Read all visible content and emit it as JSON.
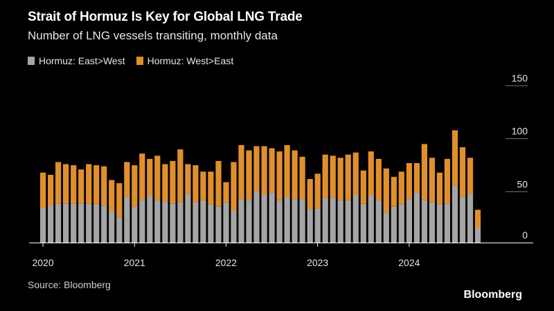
{
  "colors": {
    "background": "#000000",
    "east_west": "#a5a5a5",
    "west_east": "#e08f2e",
    "axis": "#ffffff",
    "grid": "#555555"
  },
  "header": {
    "title": "Strait of Hormuz Is Key for Global LNG Trade",
    "subtitle": "Number of LNG vessels transiting, monthly data"
  },
  "legend": [
    {
      "label": "Hormuz: East>West",
      "color": "#a5a5a5"
    },
    {
      "label": "Hormuz: West>East",
      "color": "#e08f2e"
    }
  ],
  "footer": {
    "source": "Source: Bloomberg",
    "brand": "Bloomberg"
  },
  "chart_data": {
    "type": "bar",
    "stacked": true,
    "title": "Strait of Hormuz Is Key for Global LNG Trade",
    "subtitle": "Number of LNG vessels transiting, monthly data",
    "xlabel": "",
    "ylabel": "",
    "ylim": [
      0,
      150
    ],
    "y_ticks": [
      0,
      50,
      100,
      150
    ],
    "y_axis_side": "right",
    "grid": false,
    "legend_position": "top-left",
    "x_tick_labels": [
      "2020",
      "2021",
      "2022",
      "2023",
      "2024"
    ],
    "x_tick_indices": [
      0,
      12,
      24,
      36,
      48
    ],
    "categories": [
      "2020-01",
      "2020-02",
      "2020-03",
      "2020-04",
      "2020-05",
      "2020-06",
      "2020-07",
      "2020-08",
      "2020-09",
      "2020-10",
      "2020-11",
      "2020-12",
      "2021-01",
      "2021-02",
      "2021-03",
      "2021-04",
      "2021-05",
      "2021-06",
      "2021-07",
      "2021-08",
      "2021-09",
      "2021-10",
      "2021-11",
      "2021-12",
      "2022-01",
      "2022-02",
      "2022-03",
      "2022-04",
      "2022-05",
      "2022-06",
      "2022-07",
      "2022-08",
      "2022-09",
      "2022-10",
      "2022-11",
      "2022-12",
      "2023-01",
      "2023-02",
      "2023-03",
      "2023-04",
      "2023-05",
      "2023-06",
      "2023-07",
      "2023-08",
      "2023-09",
      "2023-10",
      "2023-11",
      "2023-12",
      "2024-01",
      "2024-02",
      "2024-03",
      "2024-04",
      "2024-05",
      "2024-06",
      "2024-07",
      "2024-08",
      "2024-09",
      "2024-10"
    ],
    "series": [
      {
        "name": "Hormuz: East>West",
        "color": "#a5a5a5",
        "values": [
          33,
          35,
          37,
          37,
          37,
          37,
          37,
          36,
          35,
          29,
          24,
          43,
          34,
          40,
          44,
          40,
          39,
          37,
          38,
          46,
          38,
          40,
          36,
          34,
          38,
          30,
          41,
          40,
          49,
          45,
          47,
          40,
          43,
          41,
          41,
          31,
          32,
          42,
          42,
          40,
          40,
          45,
          37,
          44,
          40,
          28,
          34,
          36,
          41,
          47,
          40,
          38,
          36,
          37,
          54,
          43,
          46,
          14
        ],
        "stacked_totals": [
          66,
          64,
          76,
          74,
          73,
          69,
          74,
          73,
          72,
          59,
          56,
          76,
          73,
          84,
          79,
          82,
          74,
          77,
          88,
          74,
          73,
          67,
          67,
          77,
          57,
          76,
          92,
          87,
          91,
          91,
          89,
          86,
          92,
          87,
          81,
          60,
          65,
          83,
          82,
          80,
          83,
          85,
          68,
          86,
          79,
          70,
          62,
          67,
          75,
          75,
          93,
          80,
          66,
          79,
          106,
          90,
          80,
          31
        ]
      },
      {
        "name": "Hormuz: West>East",
        "color": "#e08f2e",
        "values": [
          33,
          29,
          39,
          37,
          36,
          32,
          37,
          37,
          37,
          30,
          32,
          33,
          39,
          44,
          35,
          42,
          35,
          40,
          50,
          28,
          35,
          27,
          31,
          43,
          19,
          46,
          51,
          47,
          42,
          46,
          42,
          46,
          49,
          46,
          40,
          29,
          33,
          41,
          40,
          40,
          43,
          40,
          31,
          42,
          39,
          42,
          28,
          31,
          34,
          28,
          53,
          42,
          30,
          42,
          52,
          47,
          34,
          17
        ]
      }
    ]
  }
}
